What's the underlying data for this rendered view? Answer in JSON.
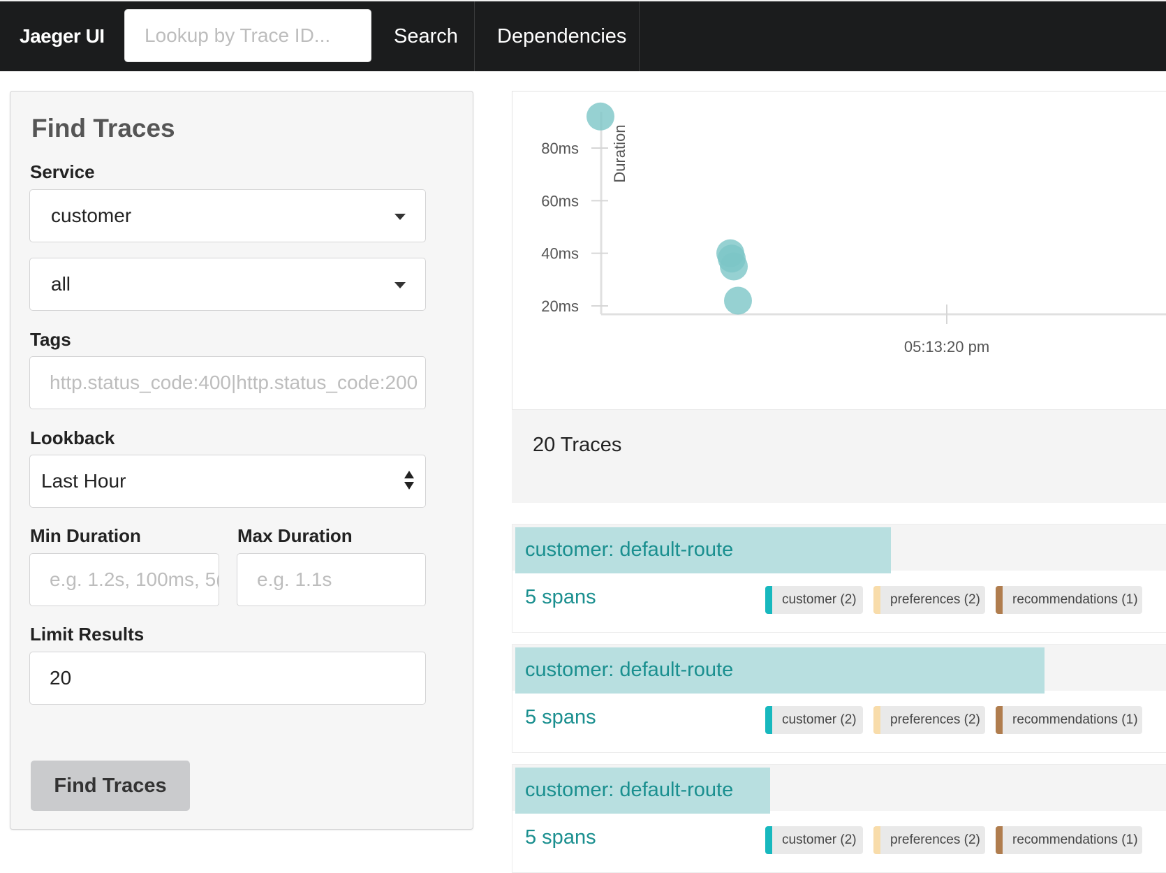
{
  "topbar": {
    "brand": "Jaeger UI",
    "lookup_placeholder": "Lookup by Trace ID...",
    "nav": {
      "search": "Search",
      "dependencies": "Dependencies"
    }
  },
  "form": {
    "title": "Find Traces",
    "service_label": "Service",
    "service_value": "customer",
    "operation_value": "all",
    "tags_label": "Tags",
    "tags_placeholder": "http.status_code:400|http.status_code:200",
    "lookback_label": "Lookback",
    "lookback_value": "Last Hour",
    "min_duration_label": "Min Duration",
    "min_duration_placeholder": "e.g. 1.2s, 100ms, 5(",
    "max_duration_label": "Max Duration",
    "max_duration_placeholder": "e.g. 1.1s",
    "limit_label": "Limit Results",
    "limit_value": "20",
    "find_button": "Find Traces"
  },
  "chart_data": {
    "type": "scatter",
    "ylabel": "Duration",
    "y_ticks": [
      "20ms",
      "40ms",
      "60ms",
      "80ms"
    ],
    "x_ticks": [
      "05:13:20 pm"
    ],
    "point_color": "#7cc5c7",
    "points_y_ms": [
      92,
      40,
      38,
      35,
      22
    ]
  },
  "results": {
    "count_text": "20 Traces",
    "traces": [
      {
        "title": "customer: default-route",
        "spans": "5 spans",
        "duration_fraction": 0.56,
        "tags": [
          {
            "label": "customer (2)",
            "color": "#17b8be"
          },
          {
            "label": "preferences (2)",
            "color": "#f8dcaa"
          },
          {
            "label": "recommendations (1)",
            "color": "#b07d4e"
          }
        ]
      },
      {
        "title": "customer: default-route",
        "spans": "5 spans",
        "duration_fraction": 0.79,
        "tags": [
          {
            "label": "customer (2)",
            "color": "#17b8be"
          },
          {
            "label": "preferences (2)",
            "color": "#f8dcaa"
          },
          {
            "label": "recommendations (1)",
            "color": "#b07d4e"
          }
        ]
      },
      {
        "title": "customer: default-route",
        "spans": "5 spans",
        "duration_fraction": 0.38,
        "tags": [
          {
            "label": "customer (2)",
            "color": "#17b8be"
          },
          {
            "label": "preferences (2)",
            "color": "#f8dcaa"
          },
          {
            "label": "recommendations (1)",
            "color": "#b07d4e"
          }
        ]
      }
    ]
  }
}
